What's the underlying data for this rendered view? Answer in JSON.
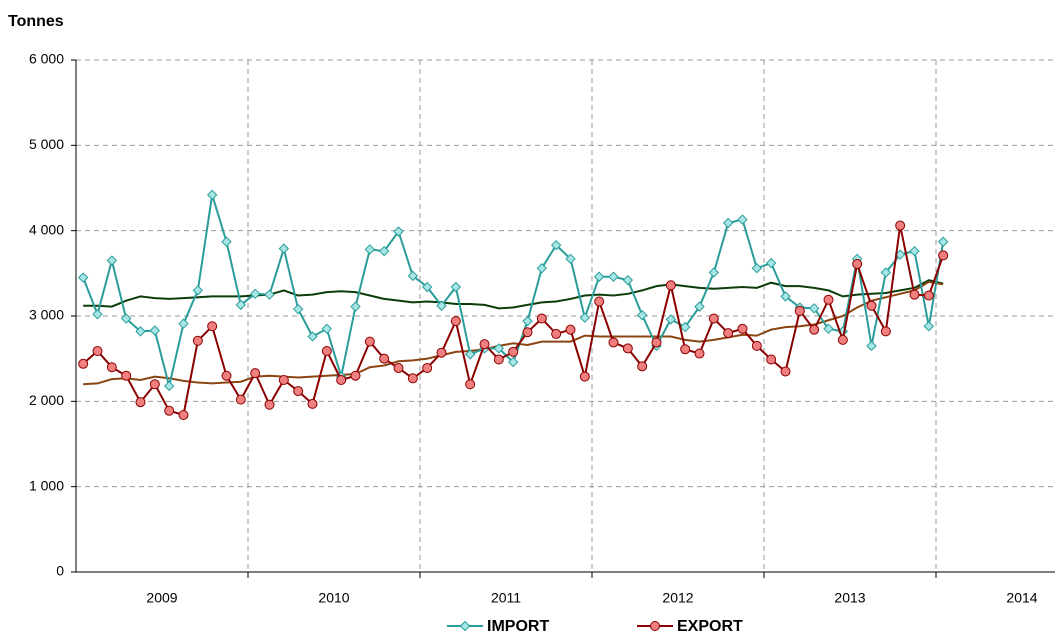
{
  "chart_data": {
    "type": "line",
    "ylabel": "Tonnes",
    "categories": [
      null,
      null,
      null,
      null,
      null,
      null,
      "2009",
      null,
      null,
      null,
      null,
      null,
      null,
      null,
      null,
      null,
      null,
      null,
      "2010",
      null,
      null,
      null,
      null,
      null,
      null,
      null,
      null,
      null,
      null,
      null,
      "2011",
      null,
      null,
      null,
      null,
      null,
      null,
      null,
      null,
      null,
      null,
      null,
      "2012",
      null,
      null,
      null,
      null,
      null,
      null,
      null,
      null,
      null,
      null,
      null,
      "2013",
      null,
      null,
      null,
      null,
      null,
      null,
      null,
      null,
      null,
      null,
      null,
      "2014",
      null,
      null,
      null,
      null,
      null
    ],
    "ylim": [
      0,
      6000
    ],
    "yticks": [
      0,
      {
        "value": 1000,
        "label": "1 000"
      },
      {
        "value": 2000,
        "label": "2 000"
      },
      {
        "value": 3000,
        "label": "3 000"
      },
      {
        "value": 4000,
        "label": "4 000"
      },
      {
        "value": 5000,
        "label": "5 000"
      },
      {
        "value": 6000,
        "label": "6 000"
      }
    ],
    "grid": true,
    "legend": "bottom",
    "series": [
      {
        "name": "IMPORT",
        "color": "#2a9d9a",
        "marker": "diamond",
        "marker_color": "#a8e6e6",
        "values": [
          3450,
          3020,
          3650,
          2970,
          2820,
          2830,
          2180,
          2910,
          3300,
          4420,
          3870,
          3130,
          3260,
          3250,
          3790,
          3080,
          2760,
          2850,
          2290,
          3110,
          3780,
          3760,
          3990,
          3470,
          3340,
          3120,
          3340,
          2550,
          2620,
          2620,
          2460,
          2940,
          3560,
          3830,
          3670,
          2980,
          3460,
          3460,
          3420,
          3010,
          2650,
          2960,
          2870,
          3110,
          3510,
          4090,
          4130,
          3560,
          3620,
          3230,
          3100,
          3090,
          2850,
          2820,
          3670,
          2650,
          3510,
          3720,
          3760,
          2880,
          3870,
          null,
          null,
          null,
          null,
          null,
          null,
          null,
          null,
          null,
          null,
          null
        ]
      },
      {
        "name": "EXPORT",
        "color": "#8b0000",
        "marker": "circle",
        "marker_color": "#f08080",
        "values": [
          2440,
          2590,
          2400,
          2300,
          1990,
          2200,
          1890,
          1840,
          2710,
          2880,
          2300,
          2020,
          2330,
          1960,
          2250,
          2120,
          1970,
          2590,
          2250,
          2300,
          2700,
          2500,
          2390,
          2270,
          2390,
          2570,
          2940,
          2200,
          2670,
          2490,
          2580,
          2810,
          2970,
          2790,
          2840,
          2290,
          3170,
          2690,
          2620,
          2410,
          2690,
          3360,
          2610,
          2560,
          2970,
          2800,
          2850,
          2650,
          2490,
          2350,
          3060,
          2840,
          3190,
          2720,
          3610,
          3120,
          2820,
          4060,
          3250,
          3240,
          3710,
          null,
          null,
          null,
          null,
          null,
          null,
          null,
          null,
          null,
          null,
          null
        ]
      },
      {
        "color": "#0b3d0b",
        "values": [
          3120,
          3120,
          3110,
          3180,
          3230,
          3210,
          3200,
          3210,
          3220,
          3230,
          3230,
          3230,
          3240,
          3250,
          3300,
          3240,
          3250,
          3280,
          3290,
          3280,
          3240,
          3200,
          3180,
          3160,
          3170,
          3160,
          3140,
          3140,
          3130,
          3090,
          3100,
          3130,
          3160,
          3170,
          3200,
          3240,
          3250,
          3240,
          3260,
          3300,
          3350,
          3370,
          3350,
          3330,
          3320,
          3330,
          3340,
          3330,
          3390,
          3350,
          3350,
          3330,
          3300,
          3230,
          3250,
          3260,
          3270,
          3300,
          3330,
          3420,
          3380,
          null,
          null,
          null,
          null,
          null,
          null,
          null,
          null,
          null,
          null,
          null
        ]
      },
      {
        "color": "#8b4513",
        "values": [
          2200,
          2210,
          2260,
          2270,
          2250,
          2290,
          2270,
          2240,
          2220,
          2210,
          2220,
          2230,
          2290,
          2300,
          2290,
          2280,
          2290,
          2300,
          2310,
          2320,
          2400,
          2420,
          2470,
          2480,
          2500,
          2540,
          2580,
          2590,
          2610,
          2650,
          2680,
          2660,
          2700,
          2700,
          2700,
          2770,
          2760,
          2760,
          2760,
          2760,
          2760,
          2760,
          2720,
          2700,
          2720,
          2750,
          2780,
          2770,
          2840,
          2870,
          2880,
          2900,
          2950,
          3000,
          3100,
          3180,
          3220,
          3260,
          3300,
          3400,
          3370,
          null,
          null,
          null,
          null,
          null,
          null,
          null,
          null,
          null,
          null,
          null
        ]
      }
    ]
  }
}
